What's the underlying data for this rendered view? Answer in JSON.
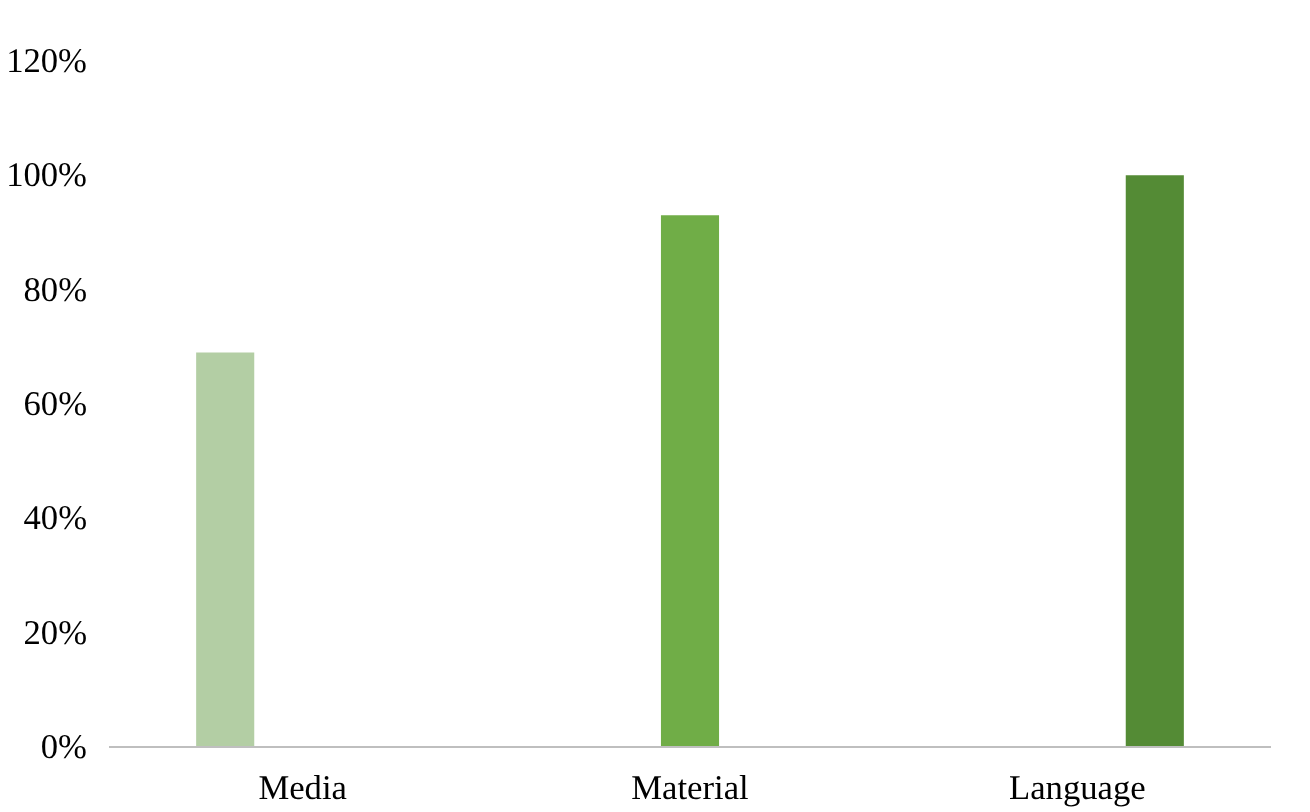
{
  "chart_data": {
    "type": "bar",
    "categories": [
      "Media",
      "Material",
      "Language"
    ],
    "series": [
      {
        "color": "#b3cea4",
        "values": [
          69,
          null,
          null
        ]
      },
      {
        "color": "#70ad47",
        "values": [
          null,
          93,
          null
        ]
      },
      {
        "color": "#548b35",
        "values": [
          null,
          null,
          100
        ]
      }
    ],
    "ylim": [
      0,
      120
    ],
    "yticks": [
      {
        "value": 0,
        "label": "0%"
      },
      {
        "value": 20,
        "label": "20%"
      },
      {
        "value": 40,
        "label": "40%"
      },
      {
        "value": 60,
        "label": "60%"
      },
      {
        "value": 80,
        "label": "80%"
      },
      {
        "value": 100,
        "label": "100%"
      },
      {
        "value": 120,
        "label": "120%"
      }
    ],
    "grid": false
  }
}
